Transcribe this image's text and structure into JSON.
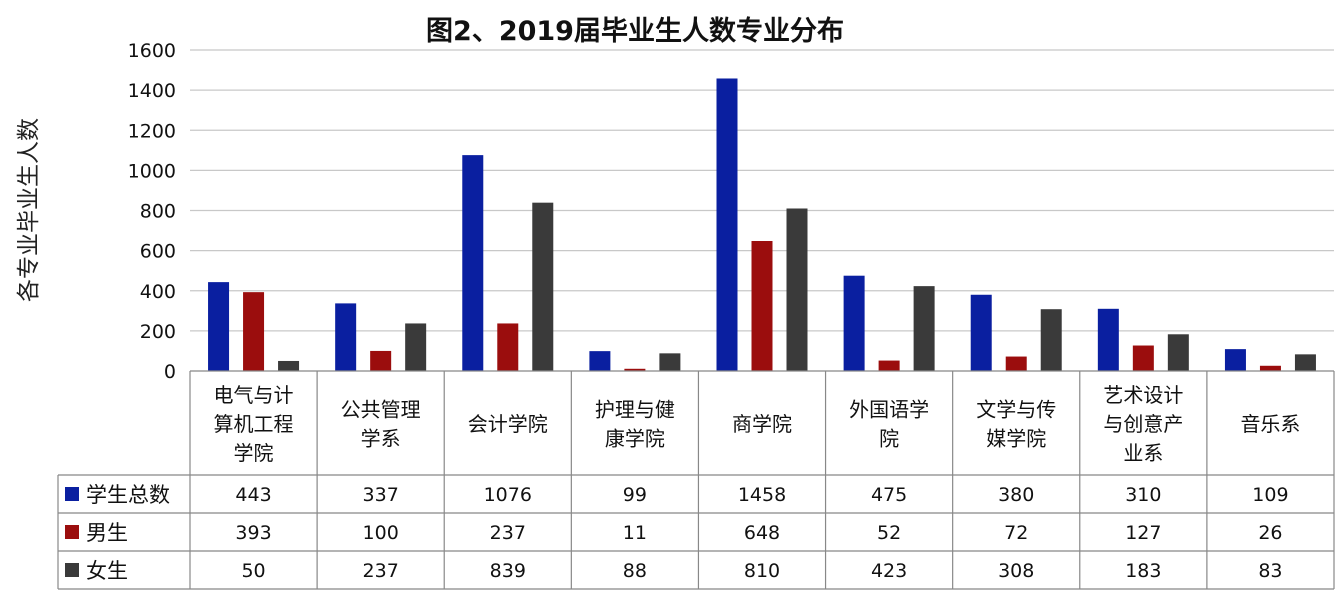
{
  "chart_data": {
    "type": "bar",
    "title": "图2、2019届毕业生人数专业分布",
    "ylabel": "各专业毕业生人数",
    "xlabel": "",
    "ylim": [
      0,
      1600
    ],
    "yticks": [
      0,
      200,
      400,
      600,
      800,
      1000,
      1200,
      1400,
      1600
    ],
    "grid": true,
    "legend_position": "data-table",
    "categories": [
      [
        "电气与计",
        "算机工程",
        "学院"
      ],
      [
        "公共管理",
        "学系"
      ],
      [
        "会计学院"
      ],
      [
        "护理与健",
        "康学院"
      ],
      [
        "商学院"
      ],
      [
        "外国语学",
        "院"
      ],
      [
        "文学与传",
        "媒学院"
      ],
      [
        "艺术设计",
        "与创意产",
        "业系"
      ],
      [
        "音乐系"
      ]
    ],
    "series": [
      {
        "name": "学生总数",
        "color": "#0a1fa0",
        "values": [
          443,
          337,
          1076,
          99,
          1458,
          475,
          380,
          310,
          109
        ]
      },
      {
        "name": "男生",
        "color": "#9b0d0d",
        "values": [
          393,
          100,
          237,
          11,
          648,
          52,
          72,
          127,
          26
        ]
      },
      {
        "name": "女生",
        "color": "#3a3a3a",
        "values": [
          50,
          237,
          839,
          88,
          810,
          423,
          308,
          183,
          83
        ]
      }
    ]
  }
}
